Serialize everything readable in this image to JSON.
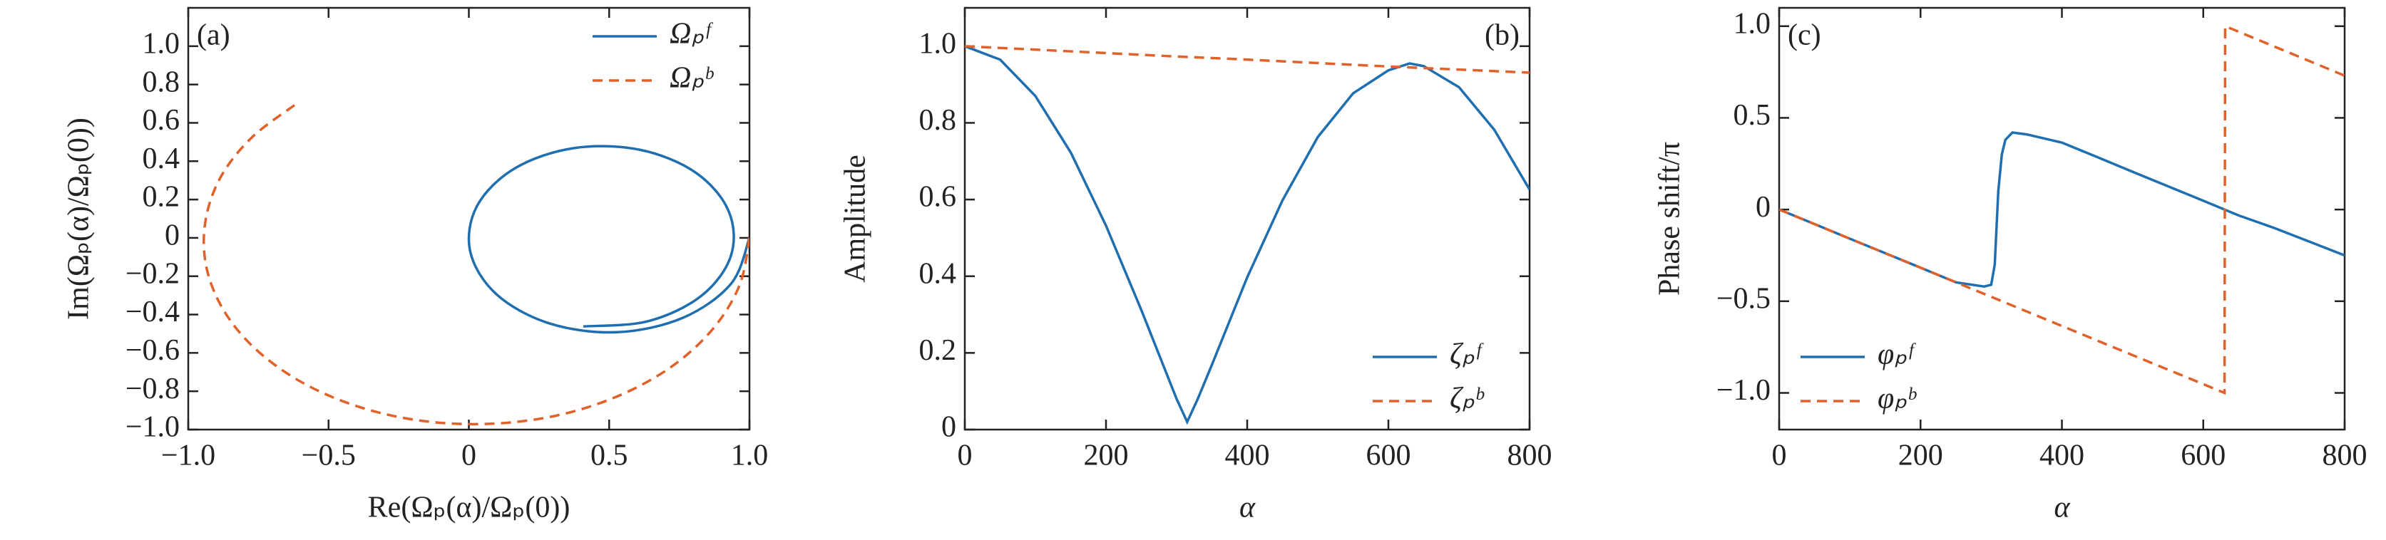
{
  "chart_data": [
    {
      "type": "curve",
      "panel_label": "(a)",
      "xlabel": "Re(Ωₚ(α)/Ωₚ(0))",
      "ylabel": "Im(Ωₚ(α)/Ωₚ(0))",
      "xlim": [
        -1,
        1
      ],
      "ylim": [
        -1,
        1.2
      ],
      "xticks": [
        {
          "value": -1,
          "label": "−1.0"
        },
        {
          "value": -0.5,
          "label": "−0.5"
        },
        0,
        0.5,
        {
          "value": 1,
          "label": "1.0"
        }
      ],
      "yticks": [
        {
          "value": -1,
          "label": "−1.0"
        },
        {
          "value": -0.8,
          "label": "−0.8"
        },
        {
          "value": -0.6,
          "label": "−0.6"
        },
        {
          "value": -0.4,
          "label": "−0.4"
        },
        {
          "value": -0.2,
          "label": "−0.2"
        },
        0,
        0.2,
        0.4,
        0.6,
        0.8,
        {
          "value": 1,
          "label": "1.0"
        }
      ],
      "legend": "top-right",
      "series": [
        {
          "name": "Ωₚᶠ",
          "color": "#1f6fb0",
          "linestyle": "solid",
          "x": [
            1.0,
            0.935,
            0.764,
            0.53,
            0.289,
            0.099,
            0.005,
            0.029,
            0.163,
            0.373,
            0.608,
            0.808,
            0.926,
            0.934,
            0.829,
            0.638,
            0.408
          ],
          "values": [
            0,
            -0.238,
            -0.416,
            -0.492,
            -0.447,
            -0.295,
            -0.072,
            0.166,
            0.362,
            0.468,
            0.46,
            0.341,
            0.139,
            -0.093,
            -0.302,
            -0.435,
            -0.462
          ]
        },
        {
          "name": "Ωₚᵇ",
          "color": "#e0622a",
          "linestyle": "dashed",
          "x": [
            1.0,
            0.965,
            0.87,
            0.723,
            0.532,
            0.312,
            0.073,
            -0.169,
            -0.397,
            -0.598,
            -0.763,
            -0.877,
            -0.937,
            -0.938,
            -0.883,
            -0.772,
            -0.616
          ],
          "values": [
            0,
            -0.246,
            -0.474,
            -0.671,
            -0.825,
            -0.927,
            -0.97,
            -0.954,
            -0.879,
            -0.751,
            -0.576,
            -0.37,
            -0.141,
            0.094,
            0.321,
            0.526,
            0.698
          ]
        }
      ]
    },
    {
      "type": "line",
      "panel_label": "(b)",
      "xlabel": "α",
      "ylabel": "Amplitude",
      "xlim": [
        0,
        800
      ],
      "ylim": [
        0,
        1.1
      ],
      "xticks": [
        0,
        200,
        400,
        600,
        800
      ],
      "yticks": [
        0,
        0.2,
        0.4,
        0.6,
        0.8,
        {
          "value": 1,
          "label": "1.0"
        }
      ],
      "legend": "bottom-right",
      "series": [
        {
          "name": "ζₚᶠ",
          "color": "#1f6fb0",
          "linestyle": "solid",
          "x": [
            0,
            50,
            100,
            150,
            200,
            250,
            300,
            315,
            330,
            350,
            400,
            450,
            500,
            550,
            600,
            630,
            650,
            700,
            750,
            800
          ],
          "values": [
            1.0,
            0.965,
            0.87,
            0.723,
            0.532,
            0.312,
            0.08,
            0.02,
            0.08,
            0.169,
            0.397,
            0.598,
            0.763,
            0.877,
            0.937,
            0.955,
            0.948,
            0.893,
            0.782,
            0.626
          ]
        },
        {
          "name": "ζₚᵇ",
          "color": "#e0622a",
          "linestyle": "dashed",
          "x": [
            0,
            100,
            200,
            300,
            400,
            500,
            600,
            700,
            800
          ],
          "values": [
            1.0,
            0.991,
            0.982,
            0.973,
            0.965,
            0.956,
            0.947,
            0.939,
            0.931
          ]
        }
      ]
    },
    {
      "type": "line",
      "panel_label": "(c)",
      "xlabel": "α",
      "ylabel": "Phase shift/π",
      "xlim": [
        0,
        800
      ],
      "ylim": [
        -1.2,
        1.1
      ],
      "xticks": [
        0,
        200,
        400,
        600,
        800
      ],
      "yticks": [
        {
          "value": -1,
          "label": "−1.0"
        },
        {
          "value": -0.5,
          "label": "−0.5"
        },
        0,
        0.5,
        {
          "value": 1,
          "label": "1.0"
        }
      ],
      "legend": "bottom-left",
      "series": [
        {
          "name": "φₚᶠ",
          "color": "#1f6fb0",
          "linestyle": "solid",
          "x": [
            0,
            50,
            100,
            150,
            200,
            250,
            290,
            300,
            305,
            310,
            315,
            320,
            330,
            350,
            400,
            450,
            500,
            550,
            600,
            650,
            700,
            750,
            800
          ],
          "values": [
            0,
            -0.079,
            -0.159,
            -0.238,
            -0.317,
            -0.397,
            -0.42,
            -0.41,
            -0.3,
            0.1,
            0.3,
            0.38,
            0.42,
            0.41,
            0.365,
            0.286,
            0.206,
            0.127,
            0.048,
            -0.032,
            -0.1,
            -0.175,
            -0.25
          ]
        },
        {
          "name": "φₚᵇ",
          "color": "#e0622a",
          "linestyle": "dashed",
          "x": [
            0,
            100,
            200,
            300,
            400,
            500,
            600,
            630,
            631,
            700,
            800
          ],
          "values": [
            0,
            -0.159,
            -0.317,
            -0.476,
            -0.635,
            -0.794,
            -0.952,
            -1.0,
            1.0,
            0.89,
            0.73
          ]
        }
      ]
    }
  ]
}
